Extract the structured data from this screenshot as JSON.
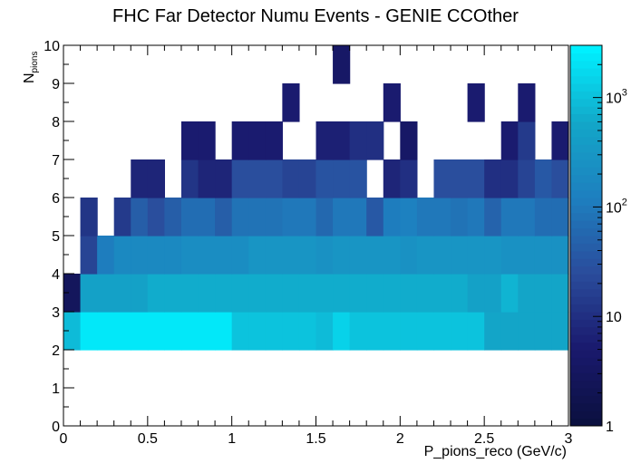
{
  "chart_data": {
    "type": "heatmap",
    "title": "FHC Far Detector Numu Events - GENIE CCOther",
    "xlabel": "P_pions_reco (GeV/c)",
    "ylabel_main": "N",
    "ylabel_sub": "pions",
    "xlim": [
      0,
      3
    ],
    "ylim": [
      0,
      10
    ],
    "x_bin_width": 0.1,
    "y_bin_width": 1,
    "x_ticks": [
      {
        "value": 0,
        "label": "0"
      },
      {
        "value": 0.5,
        "label": "0.5"
      },
      {
        "value": 1,
        "label": "1"
      },
      {
        "value": 1.5,
        "label": "1.5"
      },
      {
        "value": 2,
        "label": "2"
      },
      {
        "value": 2.5,
        "label": "2.5"
      },
      {
        "value": 3,
        "label": "3"
      }
    ],
    "y_ticks": [
      "0",
      "1",
      "2",
      "3",
      "4",
      "5",
      "6",
      "7",
      "8",
      "9",
      "10"
    ],
    "z_scale": "log",
    "zlim": [
      1,
      3000
    ],
    "colorbar_labels": [
      {
        "value": 1,
        "base": "1",
        "exp": ""
      },
      {
        "value": 10,
        "base": "10",
        "exp": ""
      },
      {
        "value": 100,
        "base": "10",
        "exp": "2"
      },
      {
        "value": 1000,
        "base": "10",
        "exp": "3"
      }
    ],
    "colorbar_colors": [
      "#0b1040",
      "#1a1a6e",
      "#2a4c9c",
      "#1e7fbf",
      "#13a6c8",
      "#00f0ff"
    ],
    "rows": [
      {
        "ny": 2,
        "z": [
          900,
          2200,
          2200,
          2200,
          2200,
          2200,
          2200,
          2200,
          2200,
          2200,
          1100,
          1100,
          1100,
          1100,
          1100,
          900,
          1500,
          1000,
          1000,
          1000,
          1000,
          1000,
          1000,
          1000,
          1000,
          600,
          600,
          600,
          600,
          600
        ]
      },
      {
        "ny": 3,
        "z": [
          3,
          500,
          500,
          500,
          500,
          650,
          650,
          650,
          650,
          650,
          650,
          650,
          650,
          650,
          650,
          650,
          650,
          650,
          650,
          650,
          650,
          650,
          650,
          650,
          500,
          500,
          800,
          600,
          600,
          600
        ]
      },
      {
        "ny": 4,
        "z": [
          null,
          20,
          120,
          180,
          180,
          180,
          180,
          220,
          220,
          220,
          220,
          300,
          300,
          300,
          300,
          260,
          300,
          300,
          300,
          300,
          240,
          300,
          300,
          300,
          300,
          300,
          240,
          240,
          240,
          240
        ]
      },
      {
        "ny": 5,
        "z": [
          null,
          12,
          null,
          15,
          40,
          25,
          45,
          70,
          70,
          45,
          80,
          80,
          80,
          100,
          100,
          55,
          90,
          90,
          35,
          110,
          130,
          100,
          100,
          80,
          90,
          50,
          100,
          100,
          70,
          70
        ]
      },
      {
        "ny": 6,
        "z": [
          null,
          null,
          null,
          null,
          8,
          8,
          null,
          12,
          8,
          8,
          25,
          25,
          25,
          20,
          20,
          30,
          30,
          30,
          null,
          8,
          10,
          null,
          25,
          25,
          25,
          10,
          10,
          20,
          35,
          25
        ]
      },
      {
        "ny": 7,
        "z": [
          null,
          null,
          null,
          null,
          null,
          null,
          null,
          5,
          5,
          null,
          5,
          5,
          5,
          null,
          null,
          6,
          6,
          10,
          10,
          null,
          4,
          null,
          null,
          null,
          null,
          null,
          5,
          15,
          null,
          5
        ]
      },
      {
        "ny": 8,
        "z": [
          null,
          null,
          null,
          null,
          null,
          null,
          null,
          null,
          null,
          null,
          null,
          null,
          null,
          5,
          null,
          null,
          null,
          null,
          null,
          5,
          null,
          null,
          null,
          null,
          5,
          null,
          null,
          5,
          null,
          null
        ]
      },
      {
        "ny": 9,
        "z": [
          null,
          null,
          null,
          null,
          null,
          null,
          null,
          null,
          null,
          null,
          null,
          null,
          null,
          null,
          null,
          null,
          4,
          null,
          null,
          null,
          null,
          null,
          null,
          null,
          null,
          null,
          null,
          null,
          null,
          null
        ]
      }
    ]
  }
}
